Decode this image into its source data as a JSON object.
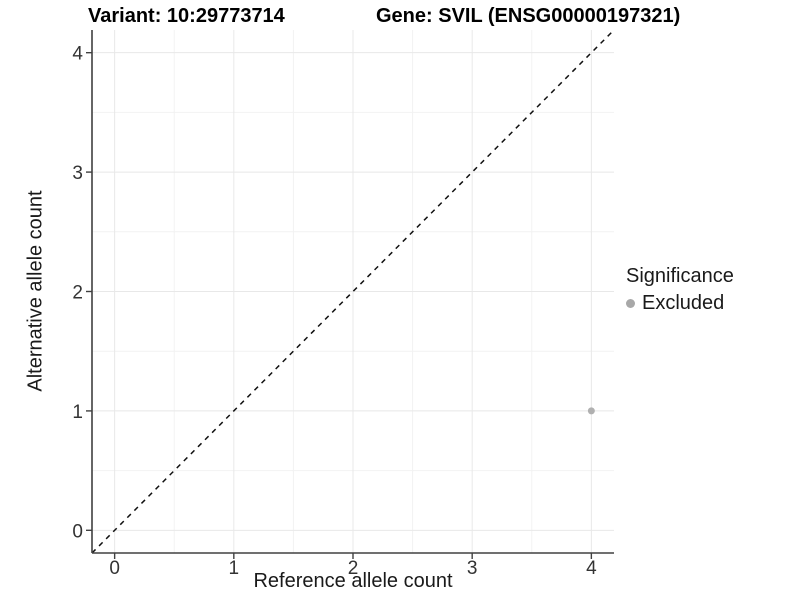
{
  "chart_data": {
    "type": "scatter",
    "title_variant": "Variant: 10:29773714",
    "title_gene": "Gene: SVIL (ENSG00000197321)",
    "xlabel": "Reference allele count",
    "ylabel": "Alternative allele count",
    "xlim": [
      -0.19,
      4.19
    ],
    "ylim": [
      -0.19,
      4.19
    ],
    "xticks": [
      0,
      1,
      2,
      3,
      4
    ],
    "yticks": [
      0,
      1,
      2,
      3,
      4
    ],
    "minor_ticks": [
      0.5,
      1.5,
      2.5,
      3.5
    ],
    "grid": "major+minor",
    "legend_position": "right",
    "identity_line": {
      "style": "dashed",
      "slope": 1,
      "intercept": 0,
      "color": "#111111"
    },
    "series": [
      {
        "name": "Excluded",
        "color": "#b0b0b0",
        "points": [
          {
            "x": 4,
            "y": 1
          }
        ]
      }
    ],
    "legend": {
      "title": "Significance",
      "items": [
        {
          "label": "Excluded",
          "color": "#a8a8a8"
        }
      ]
    },
    "colors": {
      "background": "#ffffff",
      "axis_line": "#404040",
      "tick_mark": "#404040",
      "tick_label": "#333333",
      "grid_major": "#e8e8e8",
      "grid_minor": "#f2f2f2"
    }
  }
}
